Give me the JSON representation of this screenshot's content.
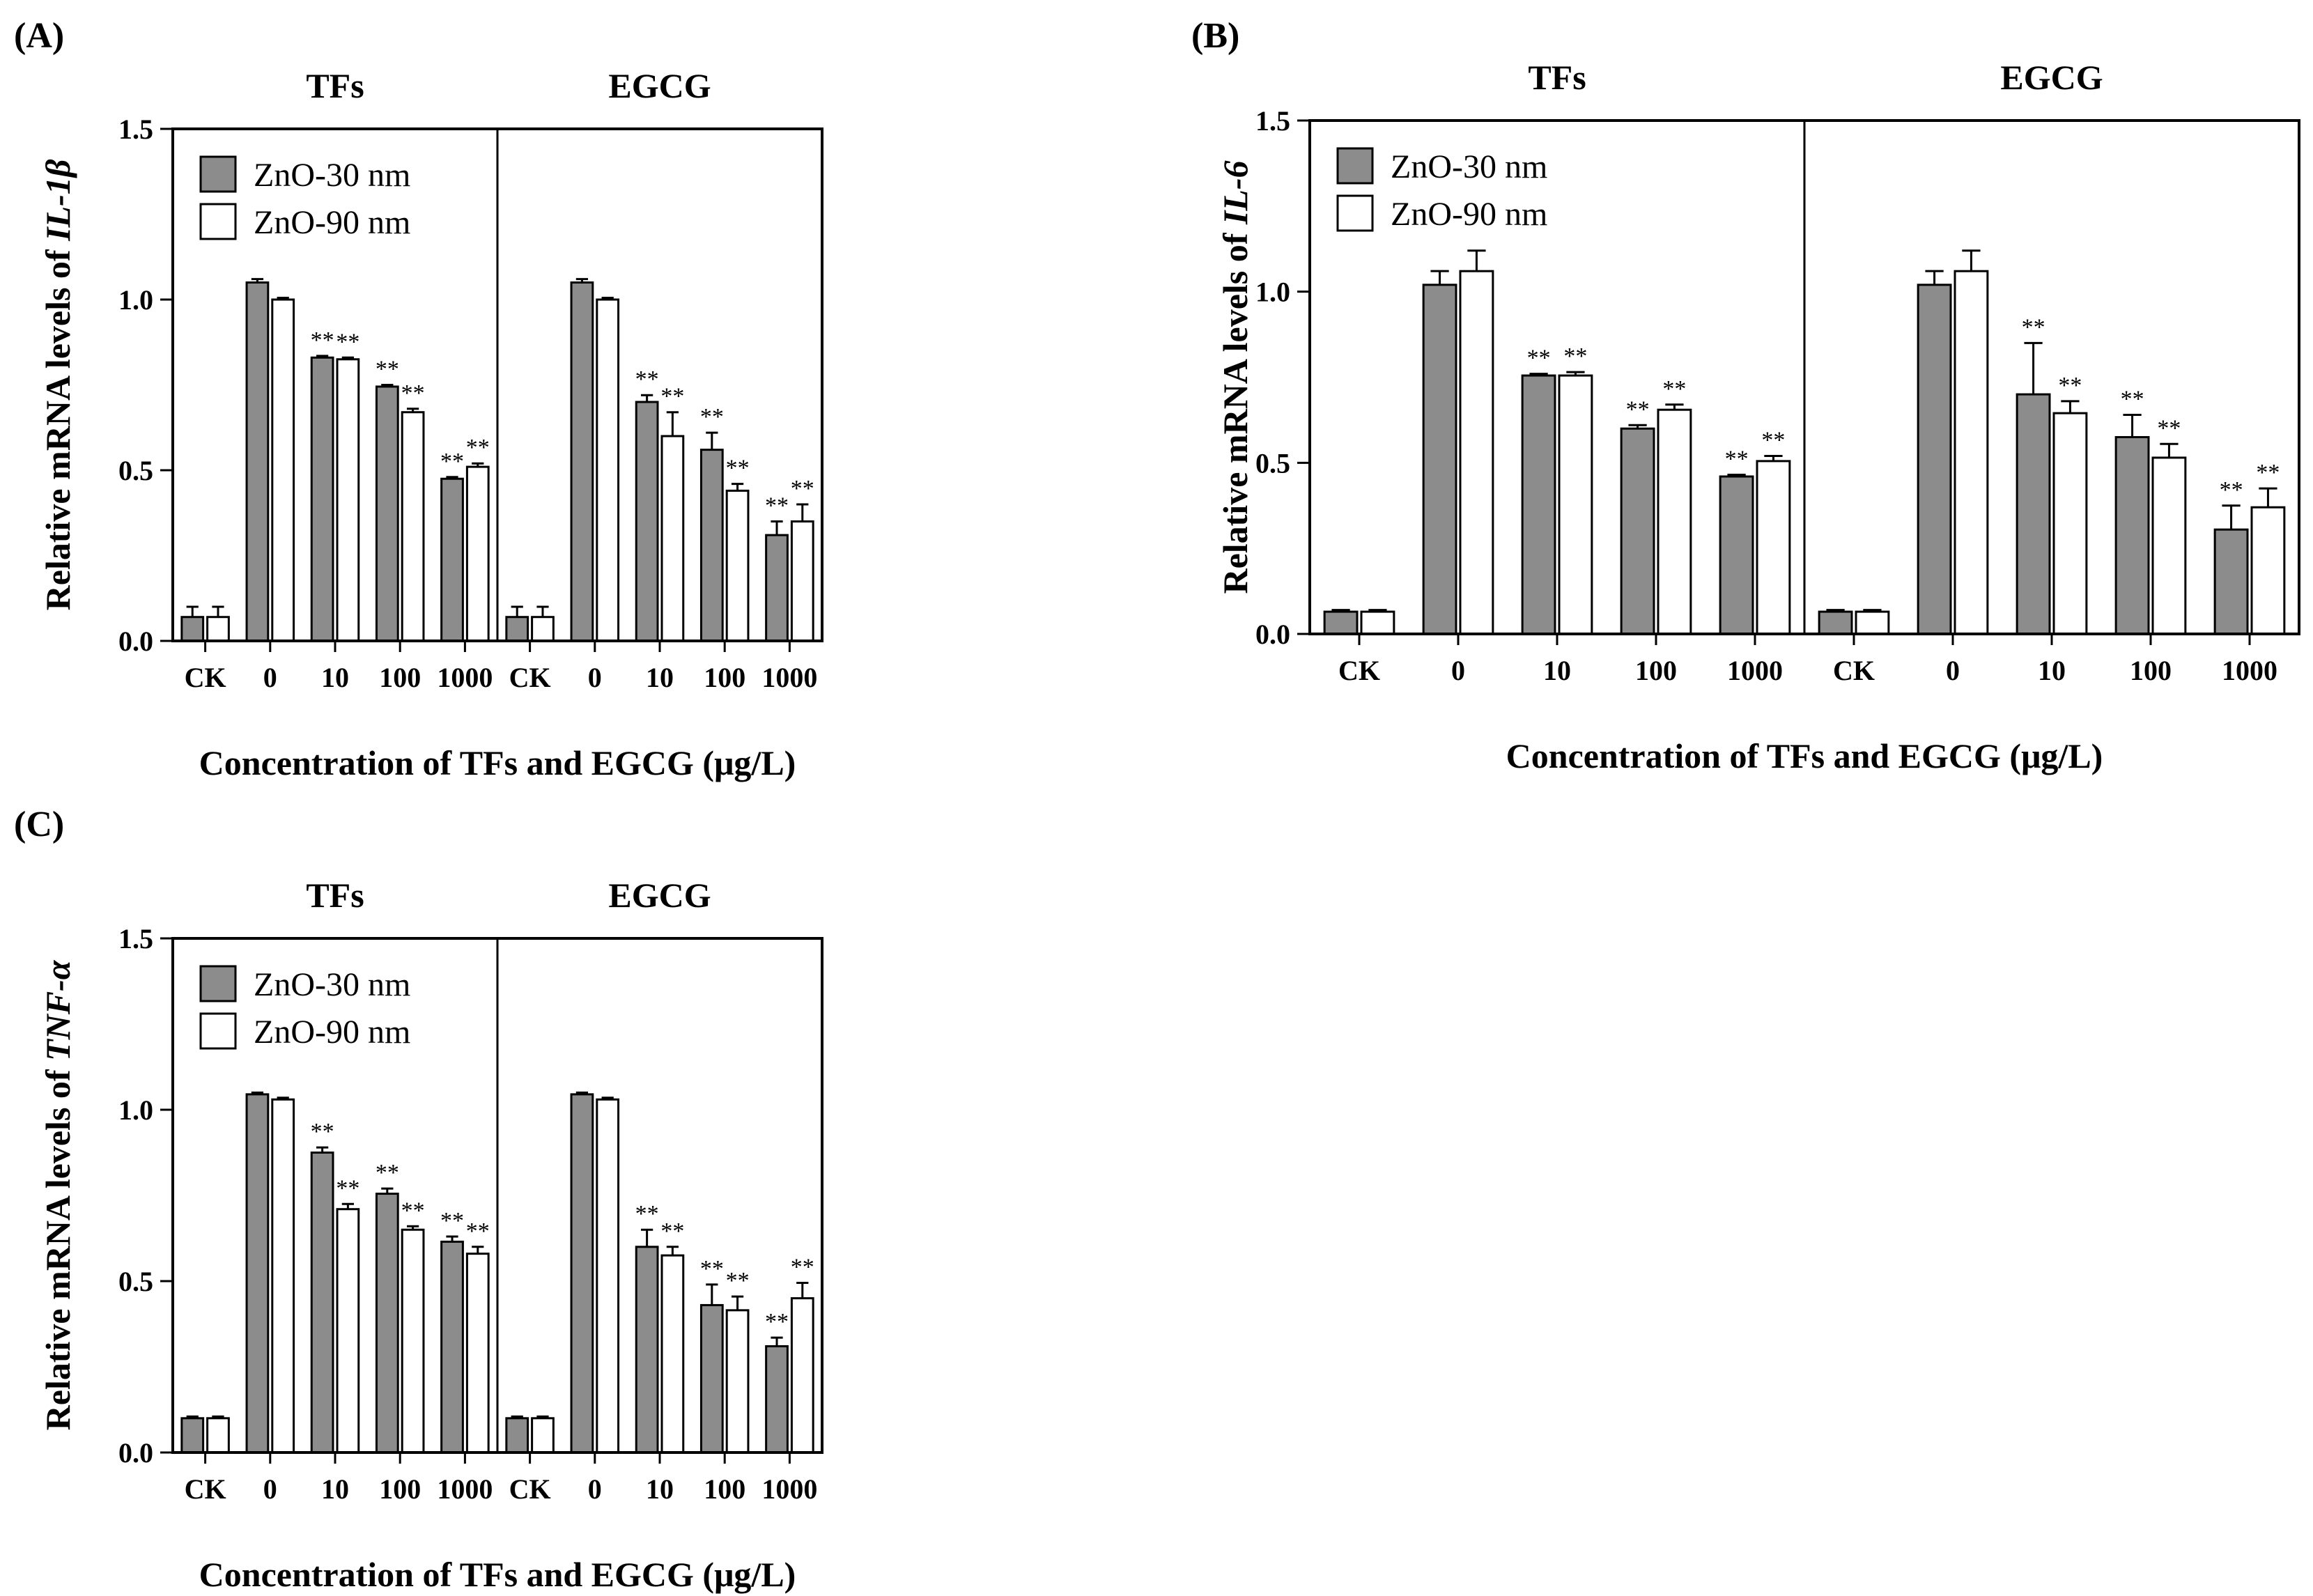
{
  "figure": {
    "x_label": "Concentration of TFs and EGCG (μg/L)",
    "y_label_prefix": "Relative mRNA levels of "
  },
  "chart_data": [
    {
      "id": "A",
      "type": "bar",
      "panel_label": "(A)",
      "gene": "IL-1β",
      "ylabel": "Relative mRNA levels of IL-1β",
      "xlabel": "Concentration of TFs and EGCG (μg/L)",
      "ylim": [
        0,
        1.5
      ],
      "yticks": [
        "0.0",
        "0.5",
        "1.0",
        "1.5"
      ],
      "groups": [
        "TFs",
        "EGCG"
      ],
      "categories": [
        "CK",
        "0",
        "10",
        "100",
        "1000",
        "CK",
        "0",
        "10",
        "100",
        "1000"
      ],
      "series": [
        {
          "name": "ZnO-30 nm",
          "color": "#8c8c8c",
          "values": [
            0.07,
            1.05,
            0.83,
            0.745,
            0.475,
            0.07,
            1.05,
            0.7,
            0.56,
            0.31
          ],
          "errors": [
            0.03,
            0.01,
            0.005,
            0.005,
            0.005,
            0.03,
            0.01,
            0.02,
            0.05,
            0.04
          ],
          "sig": [
            "",
            "",
            "**",
            "**",
            "**",
            "",
            "",
            "**",
            "**",
            "**"
          ]
        },
        {
          "name": "ZnO-90 nm",
          "color": "#ffffff",
          "values": [
            0.07,
            1.0,
            0.825,
            0.67,
            0.51,
            0.07,
            1.0,
            0.6,
            0.44,
            0.35
          ],
          "errors": [
            0.03,
            0.005,
            0.005,
            0.01,
            0.01,
            0.03,
            0.005,
            0.07,
            0.02,
            0.05
          ],
          "sig": [
            "",
            "",
            "**",
            "**",
            "**",
            "",
            "",
            "**",
            "**",
            "**"
          ]
        }
      ]
    },
    {
      "id": "B",
      "type": "bar",
      "panel_label": "(B)",
      "gene": "IL-6",
      "ylabel": "Relative mRNA levels of IL-6",
      "xlabel": "Concentration of TFs and EGCG (μg/L)",
      "ylim": [
        0,
        1.5
      ],
      "yticks": [
        "0.0",
        "0.5",
        "1.0",
        "1.5"
      ],
      "groups": [
        "TFs",
        "EGCG"
      ],
      "categories": [
        "CK",
        "0",
        "10",
        "100",
        "1000",
        "CK",
        "0",
        "10",
        "100",
        "1000"
      ],
      "series": [
        {
          "name": "ZnO-30 nm",
          "color": "#8c8c8c",
          "values": [
            0.065,
            1.02,
            0.755,
            0.6,
            0.46,
            0.065,
            1.02,
            0.7,
            0.575,
            0.305
          ],
          "errors": [
            0.005,
            0.04,
            0.005,
            0.01,
            0.005,
            0.005,
            0.04,
            0.15,
            0.065,
            0.07
          ],
          "sig": [
            "",
            "",
            "**",
            "**",
            "**",
            "",
            "",
            "**",
            "**",
            "**"
          ]
        },
        {
          "name": "ZnO-90 nm",
          "color": "#ffffff",
          "values": [
            0.065,
            1.06,
            0.755,
            0.655,
            0.505,
            0.065,
            1.06,
            0.645,
            0.515,
            0.37
          ],
          "errors": [
            0.005,
            0.06,
            0.01,
            0.015,
            0.015,
            0.005,
            0.06,
            0.035,
            0.04,
            0.055
          ],
          "sig": [
            "",
            "",
            "**",
            "**",
            "**",
            "",
            "",
            "**",
            "**",
            "**"
          ]
        }
      ]
    },
    {
      "id": "C",
      "type": "bar",
      "panel_label": "(C)",
      "gene": "TNF-α",
      "ylabel": "Relative mRNA levels of TNF-α",
      "xlabel": "Concentration of TFs and EGCG (μg/L)",
      "ylim": [
        0,
        1.5
      ],
      "yticks": [
        "0.0",
        "0.5",
        "1.0",
        "1.5"
      ],
      "groups": [
        "TFs",
        "EGCG"
      ],
      "categories": [
        "CK",
        "0",
        "10",
        "100",
        "1000",
        "CK",
        "0",
        "10",
        "100",
        "1000"
      ],
      "series": [
        {
          "name": "ZnO-30 nm",
          "color": "#8c8c8c",
          "values": [
            0.1,
            1.045,
            0.875,
            0.755,
            0.615,
            0.1,
            1.045,
            0.6,
            0.43,
            0.31
          ],
          "errors": [
            0.005,
            0.005,
            0.015,
            0.015,
            0.015,
            0.005,
            0.005,
            0.05,
            0.06,
            0.025
          ],
          "sig": [
            "",
            "",
            "**",
            "**",
            "**",
            "",
            "",
            "**",
            "**",
            "**"
          ]
        },
        {
          "name": "ZnO-90 nm",
          "color": "#ffffff",
          "values": [
            0.1,
            1.03,
            0.71,
            0.65,
            0.58,
            0.1,
            1.03,
            0.575,
            0.415,
            0.45
          ],
          "errors": [
            0.005,
            0.005,
            0.015,
            0.01,
            0.02,
            0.005,
            0.005,
            0.025,
            0.04,
            0.045
          ],
          "sig": [
            "",
            "",
            "**",
            "**",
            "**",
            "",
            "",
            "**",
            "**",
            "**"
          ]
        }
      ]
    }
  ]
}
